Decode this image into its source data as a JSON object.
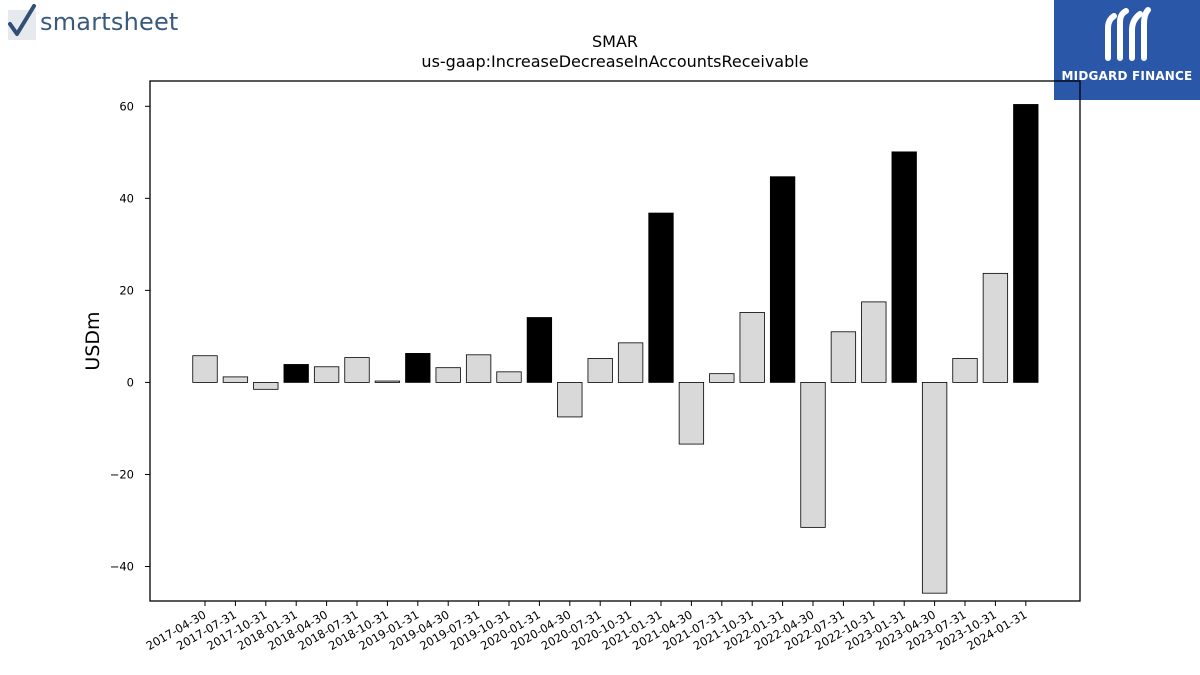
{
  "logos": {
    "left_brand": "smartsheet",
    "right_brand": "MIDGARD FINANCE"
  },
  "chart_data": {
    "type": "bar",
    "title": "SMAR",
    "subtitle": "us-gaap:IncreaseDecreaseInAccountsReceivable",
    "xlabel": "",
    "ylabel": "USDm",
    "ylim": [
      -47.5,
      65.5
    ],
    "yticks": [
      -40,
      -20,
      0,
      20,
      40,
      60
    ],
    "grid": false,
    "categories": [
      "2017-04-30",
      "2017-07-31",
      "2017-10-31",
      "2018-01-31",
      "2018-04-30",
      "2018-07-31",
      "2018-10-31",
      "2019-01-31",
      "2019-04-30",
      "2019-07-31",
      "2019-10-31",
      "2020-01-31",
      "2020-04-30",
      "2020-07-31",
      "2020-10-31",
      "2021-01-31",
      "2021-04-30",
      "2021-07-31",
      "2021-10-31",
      "2022-01-31",
      "2022-04-30",
      "2022-07-31",
      "2022-10-31",
      "2023-01-31",
      "2023-04-30",
      "2023-07-31",
      "2023-10-31",
      "2024-01-31"
    ],
    "values": [
      5.8,
      1.2,
      -1.5,
      3.9,
      3.4,
      5.4,
      0.3,
      6.3,
      3.2,
      6.0,
      2.3,
      14.1,
      -7.5,
      5.2,
      8.6,
      36.8,
      -13.4,
      1.9,
      15.2,
      44.7,
      -31.5,
      11.0,
      17.5,
      50.1,
      -45.8,
      5.2,
      23.7,
      60.4
    ],
    "fiscal_year_end_bars": [
      3,
      7,
      11,
      15,
      19,
      23,
      27
    ],
    "colors": {
      "quarter_fill": "#d9d9d9",
      "fiscal_year_fill": "#000000",
      "bar_edge": "#000000"
    }
  }
}
